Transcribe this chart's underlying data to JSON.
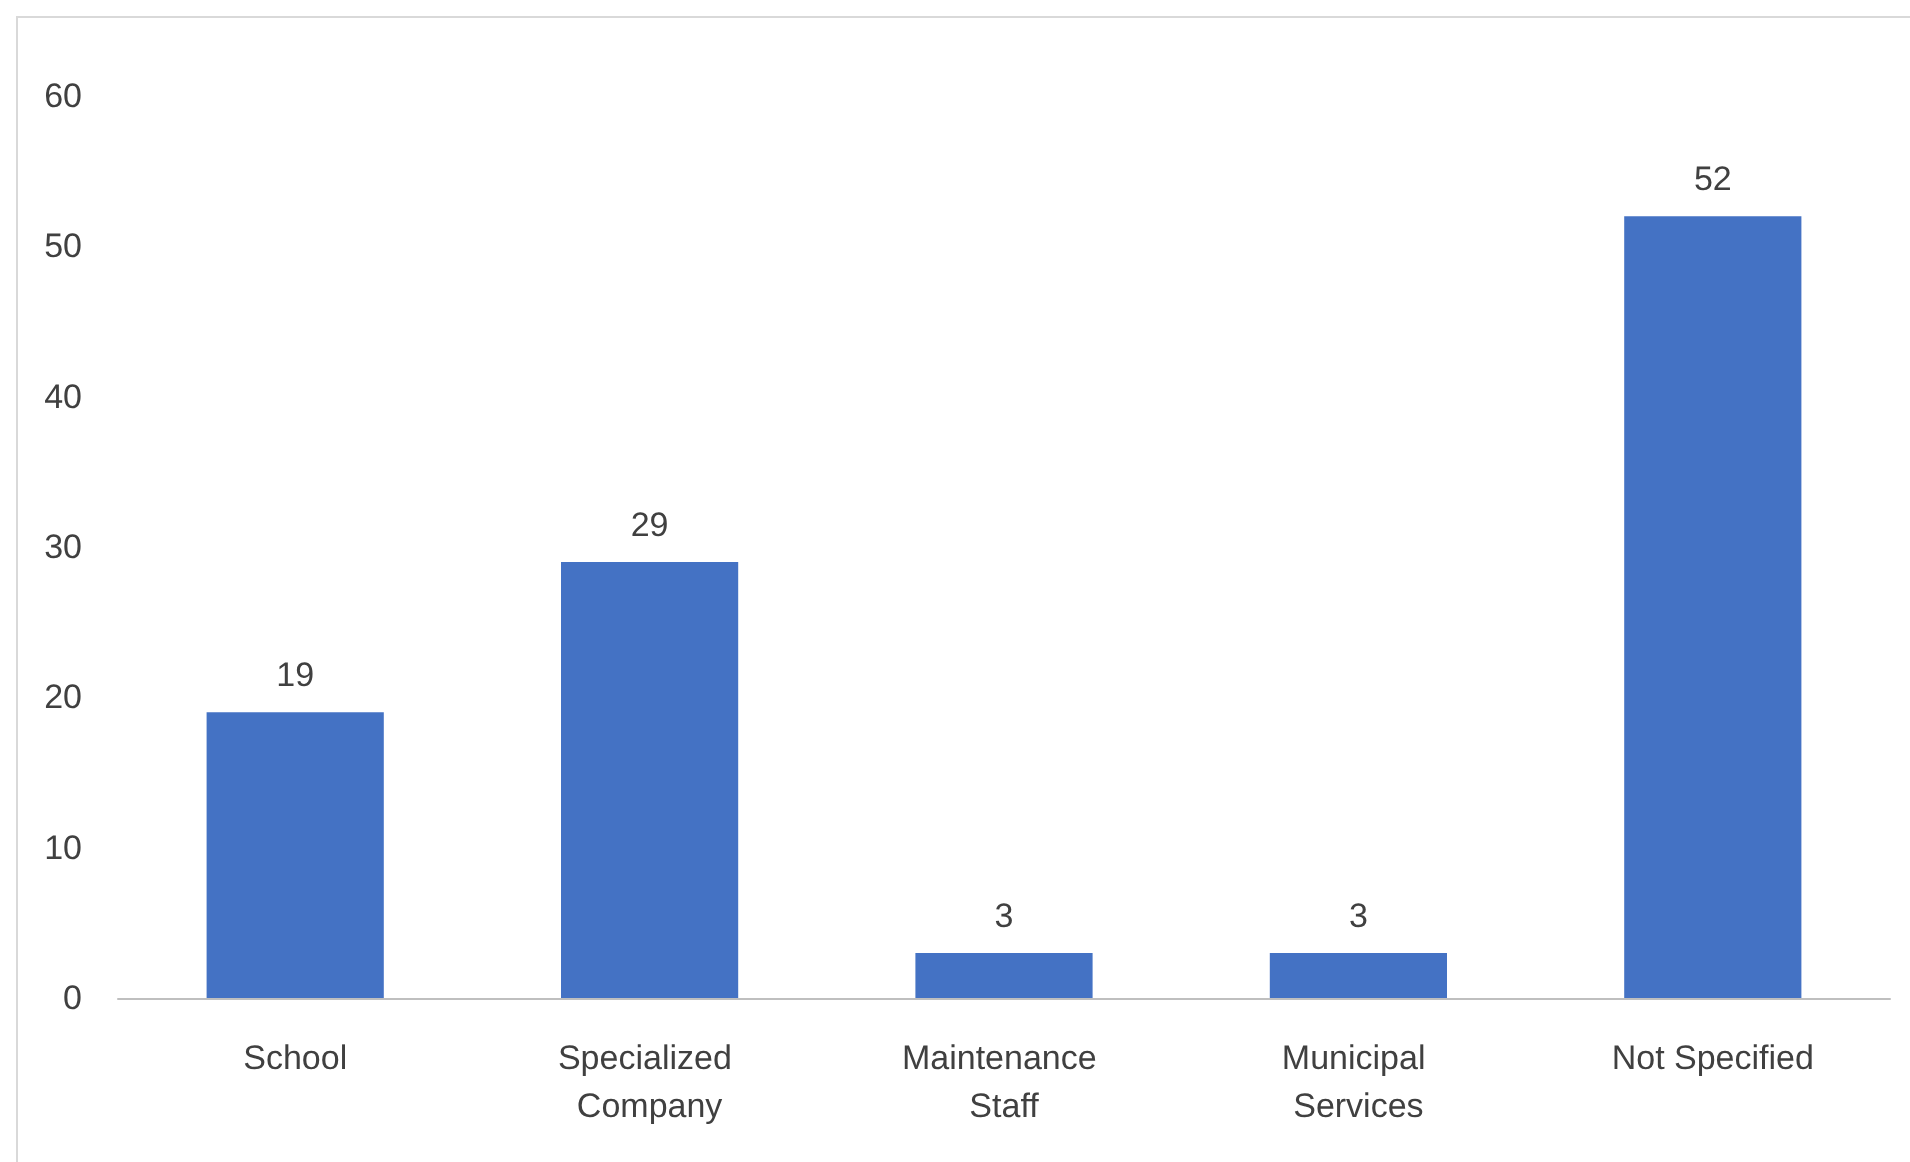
{
  "chart_data": {
    "type": "bar",
    "categories": [
      "School",
      "Specialized Company",
      "Maintenance Staff",
      "Municipal Services",
      "Not Specified"
    ],
    "values": [
      19,
      29,
      3,
      3,
      52
    ],
    "color": "#4472c4",
    "ylim": [
      0,
      60
    ],
    "yticks": [
      0,
      10,
      20,
      30,
      40,
      50,
      60
    ],
    "grid": false,
    "data_labels": true
  }
}
